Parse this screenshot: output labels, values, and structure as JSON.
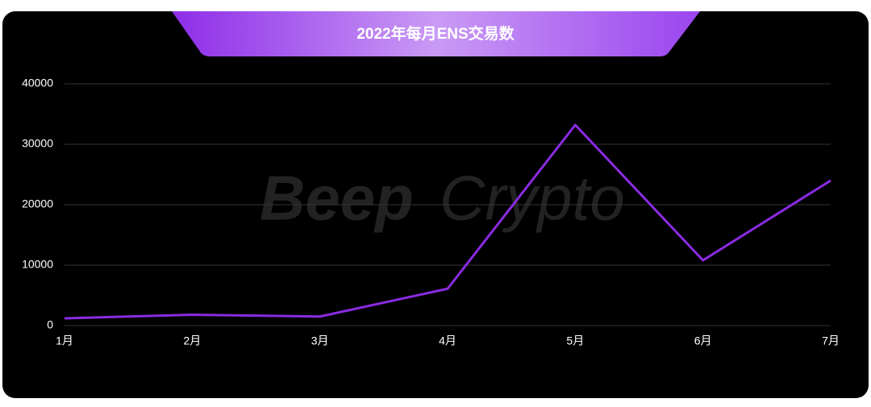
{
  "chart_data": {
    "type": "line",
    "title": "2022年每月ENS交易数",
    "watermark": [
      "Beep",
      "Crypto"
    ],
    "categories": [
      "1月",
      "2月",
      "3月",
      "4月",
      "5月",
      "6月",
      "7月"
    ],
    "values": [
      1200,
      1800,
      1500,
      6100,
      33200,
      10800,
      24000
    ],
    "color": "#8a2be2",
    "ylim": [
      0,
      40000
    ],
    "yticks": [
      0,
      10000,
      20000,
      30000,
      40000
    ],
    "grid": true
  }
}
